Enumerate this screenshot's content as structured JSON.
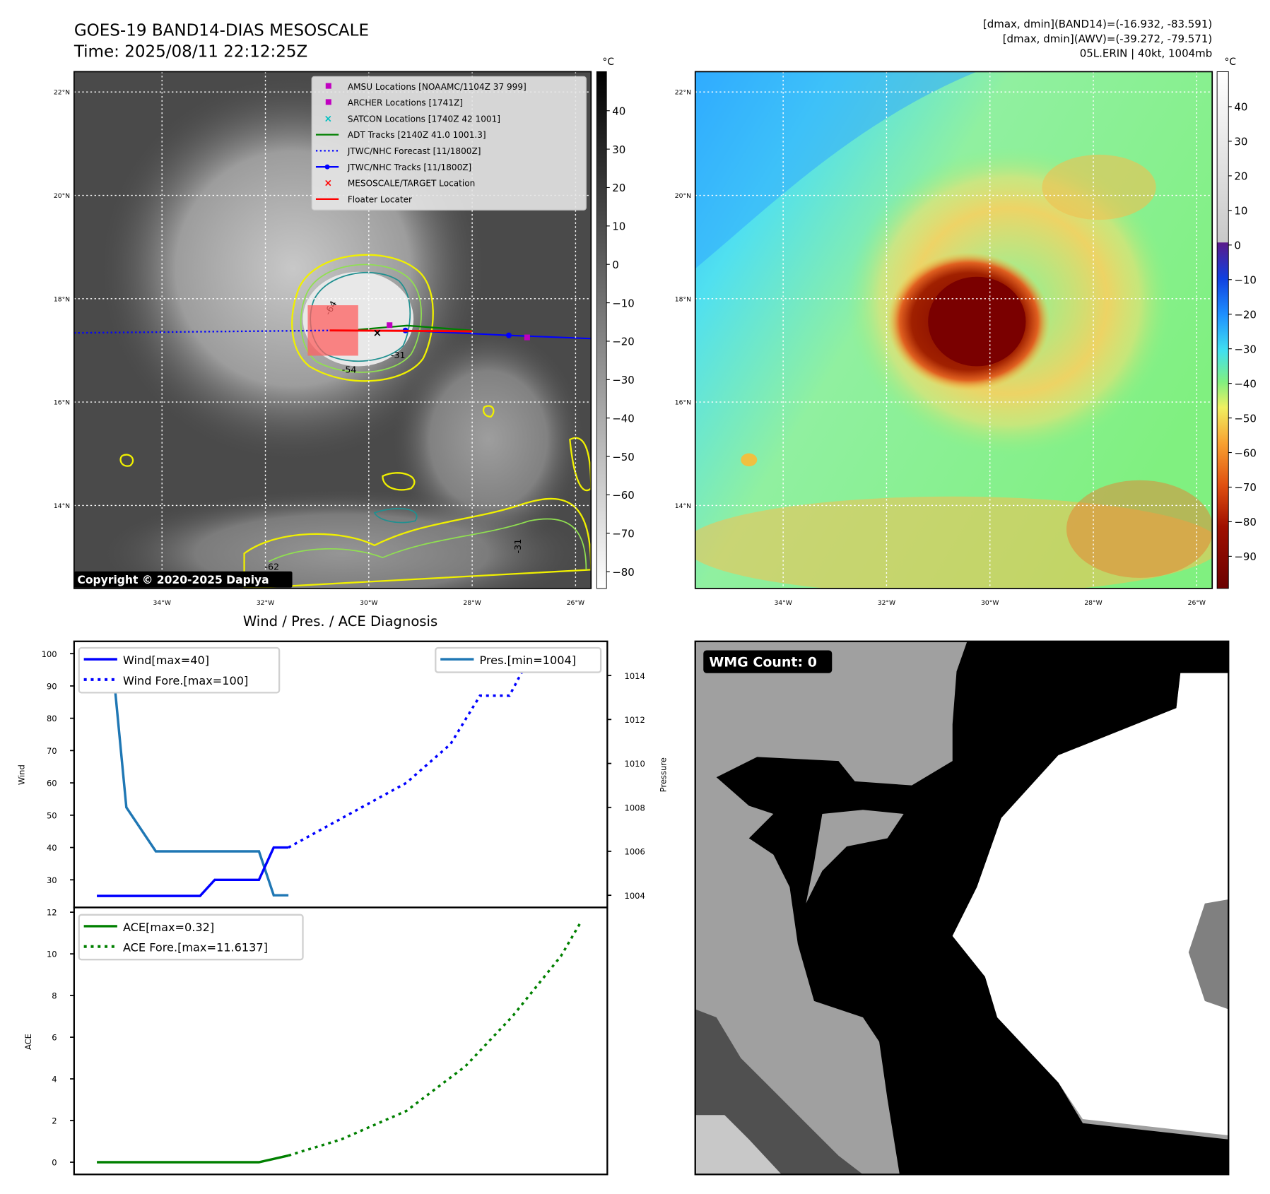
{
  "header": {
    "title": "GOES-19 BAND14-DIAS MESOSCALE",
    "time": "Time: 2025/08/11 22:12:25Z",
    "info_line1": "[dmax, dmin](BAND14)=(-16.932, -83.591)",
    "info_line2": "[dmax, dmin](AWV)=(-39.272, -79.571)",
    "info_line3": "05L.ERIN | 40kt, 1004mb"
  },
  "map": {
    "lat_ticks": [
      {
        "v": 22,
        "label": "22°N"
      },
      {
        "v": 20,
        "label": "20°N"
      },
      {
        "v": 18,
        "label": "18°N"
      },
      {
        "v": 16,
        "label": "16°N"
      },
      {
        "v": 14,
        "label": "14°N"
      }
    ],
    "lon_ticks": [
      {
        "v": -34,
        "label": "34°W"
      },
      {
        "v": -32,
        "label": "32°W"
      },
      {
        "v": -30,
        "label": "30°W"
      },
      {
        "v": -28,
        "label": "28°W"
      },
      {
        "v": -26,
        "label": "26°W"
      }
    ],
    "legend": [
      {
        "label": "AMSU Locations [NOAAMC/1104Z 37 999]",
        "symbol": "square",
        "color": "#c000c0"
      },
      {
        "label": "ARCHER Locations [1741Z]",
        "symbol": "square",
        "color": "#c000c0"
      },
      {
        "label": "SATCON Locations [1740Z 42 1001]",
        "symbol": "x",
        "color": "#00c0c0"
      },
      {
        "label": "ADT Tracks [2140Z 41.0 1001.3]",
        "symbol": "line",
        "color": "#008000"
      },
      {
        "label": "JTWC/NHC Forecast [11/1800Z]",
        "symbol": "dotted",
        "color": "#0000ff"
      },
      {
        "label": "JTWC/NHC Tracks [11/1800Z]",
        "symbol": "line-dot",
        "color": "#0000ff"
      },
      {
        "label": "MESOSCALE/TARGET Location",
        "symbol": "x",
        "color": "#ff0000"
      },
      {
        "label": "Floater Locater",
        "symbol": "line",
        "color": "#ff0000"
      }
    ],
    "contour_labels": [
      "-64",
      "-54",
      "-31",
      "-31",
      "-62"
    ],
    "copyright": "Copyright © 2020-2025 Dapiya",
    "colorbar_unit": "°C",
    "colorbar_left_ticks": [
      "40",
      "30",
      "20",
      "10",
      "0",
      "−10",
      "−20",
      "−30",
      "−40",
      "−50",
      "−60",
      "−70",
      "−80"
    ],
    "colorbar_right_ticks": [
      "40",
      "30",
      "20",
      "10",
      "0",
      "−10",
      "−20",
      "−30",
      "−40",
      "−50",
      "−60",
      "−70",
      "−80",
      "−90"
    ]
  },
  "diagnosis_title": "Wind / Pres. / ACE Diagnosis",
  "wmg": {
    "label": "WMG Count: 0"
  },
  "colors": {
    "wind": "#0000ff",
    "pressure": "#1f77b4",
    "ace": "#008000"
  },
  "chart_data": [
    {
      "type": "line",
      "title": "Wind / Pres. / ACE Diagnosis",
      "ylabel": "Wind",
      "y2label": "Pressure",
      "ylim": [
        23,
        103
      ],
      "y2lim": [
        1003.5,
        1015.5
      ],
      "yticks": [
        "30",
        "40",
        "50",
        "60",
        "70",
        "80",
        "90",
        "100"
      ],
      "y2ticks": [
        "1004",
        "1006",
        "1008",
        "1010",
        "1012",
        "1014"
      ],
      "legend_left": [
        "Wind[max=40]",
        "Wind Fore.[max=100]"
      ],
      "legend_right": [
        "Pres.[min=1004]"
      ],
      "series": [
        {
          "name": "Wind",
          "axis": "left",
          "style": "solid",
          "x": [
            0,
            7,
            8,
            11,
            12,
            13
          ],
          "y": [
            25,
            25,
            30,
            30,
            40,
            40
          ]
        },
        {
          "name": "Wind Fore.",
          "axis": "left",
          "style": "dotted",
          "x": [
            13,
            17,
            21,
            24,
            26,
            28,
            29.5
          ],
          "y": [
            40,
            50,
            60,
            72,
            87,
            87,
            100
          ]
        },
        {
          "name": "Pres.",
          "axis": "right",
          "style": "solid",
          "x": [
            0,
            1,
            2,
            4,
            11,
            12,
            13
          ],
          "y": [
            1015,
            1015,
            1008,
            1006,
            1006,
            1004,
            1004
          ]
        }
      ]
    },
    {
      "type": "line",
      "ylabel": "ACE",
      "ylim": [
        -0.6,
        12.2
      ],
      "yticks": [
        "0",
        "2",
        "4",
        "6",
        "8",
        "10",
        "12"
      ],
      "legend": [
        "ACE[max=0.32]",
        "ACE Fore.[max=11.6137]"
      ],
      "series": [
        {
          "name": "ACE",
          "style": "solid",
          "x": [
            0,
            11,
            13
          ],
          "y": [
            0,
            0,
            0.32
          ]
        },
        {
          "name": "ACE Fore.",
          "style": "dotted",
          "x": [
            13,
            16.6,
            21,
            25,
            28.2,
            31.5,
            32.9
          ],
          "y": [
            0.32,
            1.1,
            2.46,
            4.6,
            7.0,
            9.9,
            11.6
          ]
        }
      ]
    }
  ]
}
